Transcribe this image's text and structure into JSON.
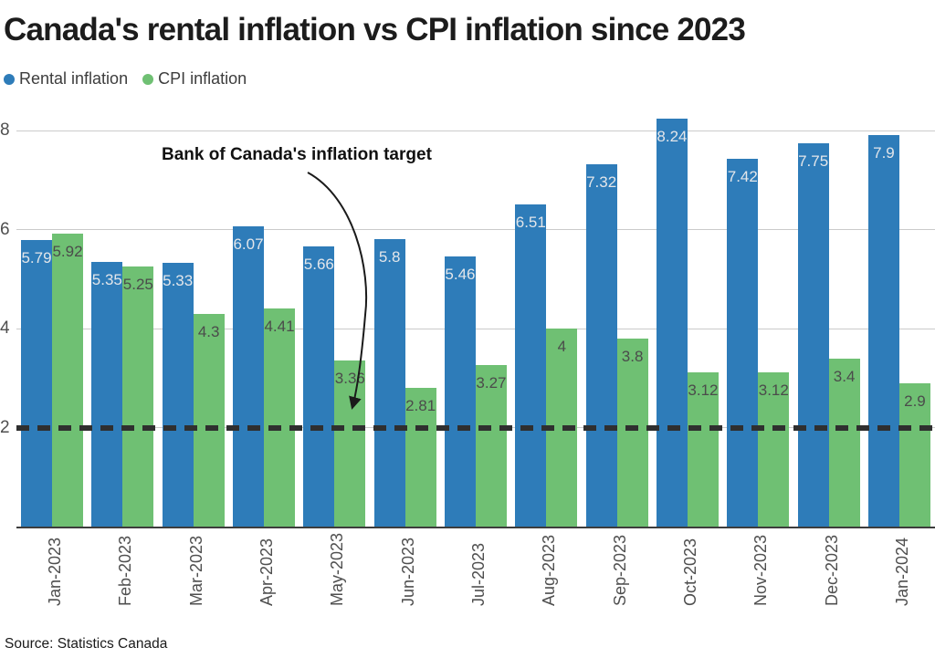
{
  "title": "Canada's rental inflation vs CPI inflation since 2023",
  "legend": [
    {
      "label": "Rental inflation",
      "color": "#2e7cb9"
    },
    {
      "label": "CPI inflation",
      "color": "#6fc073"
    }
  ],
  "annotation": {
    "text": "Bank of Canada's inflation target"
  },
  "source": "Source: Statistics Canada",
  "colors": {
    "bar_blue": "#2e7cb9",
    "bar_green": "#6fc073",
    "value_label_on_blue": "#e3e6ea",
    "value_label_on_green": "#4b4b4b",
    "gridline": "#cbcbcb",
    "axis_line": "#3d3d3d",
    "target_line": "#2f2f2f",
    "tick_text": "#4f4f4f"
  },
  "chart_data": {
    "type": "bar",
    "categories": [
      "Jan-2023",
      "Feb-2023",
      "Mar-2023",
      "Apr-2023",
      "May-2023",
      "Jun-2023",
      "Jul-2023",
      "Aug-2023",
      "Sep-2023",
      "Oct-2023",
      "Nov-2023",
      "Dec-2023",
      "Jan-2024"
    ],
    "series": [
      {
        "name": "Rental inflation",
        "color": "#2e7cb9",
        "values": [
          5.79,
          5.35,
          5.33,
          6.07,
          5.66,
          5.8,
          5.46,
          6.51,
          7.32,
          8.24,
          7.42,
          7.75,
          7.9
        ]
      },
      {
        "name": "CPI inflation",
        "color": "#6fc073",
        "values": [
          5.92,
          5.25,
          4.3,
          4.41,
          3.36,
          2.81,
          3.27,
          4,
          3.8,
          3.12,
          3.12,
          3.4,
          2.9
        ]
      }
    ],
    "title": "Canada's rental inflation vs CPI inflation since 2023",
    "xlabel": "",
    "ylabel": "",
    "yticks": [
      2,
      4,
      6,
      8
    ],
    "ylim": [
      0,
      8.6
    ],
    "grid": true,
    "legend_position": "top-left",
    "target_line": 2,
    "target_line_label": "Bank of Canada's inflation target"
  }
}
